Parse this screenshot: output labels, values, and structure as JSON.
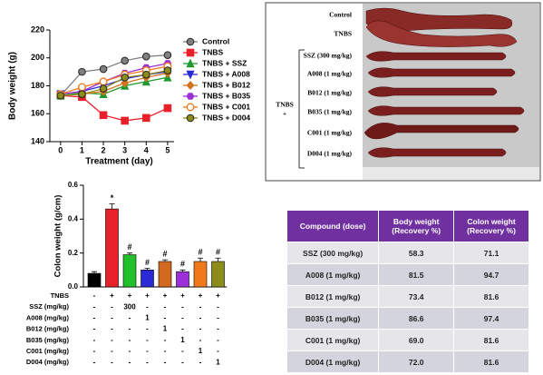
{
  "chart_data": [
    {
      "type": "line",
      "y_label": "Body weight (g)",
      "x_label": "Treatment (day)",
      "x": [
        0,
        1,
        2,
        3,
        4,
        5
      ],
      "xlim": [
        -0.5,
        5.3
      ],
      "xticks": [
        0,
        1,
        2,
        3,
        4,
        5
      ],
      "ylim": [
        140,
        220
      ],
      "yticks": [
        140,
        160,
        180,
        200,
        220
      ],
      "series": [
        {
          "name": "Control",
          "color": "#808080",
          "marker": "circle",
          "values": [
            173,
            190,
            192,
            198,
            201,
            202
          ]
        },
        {
          "name": "TNBS",
          "color": "#e8202a",
          "marker": "square",
          "values": [
            173,
            172,
            159,
            155,
            157,
            164
          ]
        },
        {
          "name": "TNBS + SSZ",
          "color": "#1e9a2e",
          "marker": "triangle",
          "values": [
            173,
            175,
            174,
            180,
            183,
            186
          ]
        },
        {
          "name": "TNBS + A008",
          "color": "#2b2bd6",
          "marker": "triangle-down",
          "values": [
            174,
            176,
            180,
            185,
            188,
            190
          ]
        },
        {
          "name": "TNBS + B012",
          "color": "#d2731e",
          "marker": "diamond",
          "values": [
            173,
            174,
            176,
            182,
            186,
            189
          ]
        },
        {
          "name": "TNBS + B035",
          "color": "#9b30d9",
          "marker": "hexagon",
          "values": [
            174,
            176,
            183,
            189,
            193,
            196
          ]
        },
        {
          "name": "TNBS + C001",
          "color": "#f07a1a",
          "marker": "open-circle",
          "values": [
            174,
            179,
            183,
            188,
            191,
            194
          ]
        },
        {
          "name": "TNBS + D004",
          "color": "#8c8c1a",
          "marker": "circle",
          "values": [
            173,
            174,
            178,
            186,
            188,
            191
          ]
        }
      ]
    },
    {
      "type": "bar",
      "y_label": "Colon weight (g/cm)",
      "values": [
        0.08,
        0.46,
        0.19,
        0.1,
        0.15,
        0.09,
        0.15,
        0.15
      ],
      "errors": [
        0.01,
        0.03,
        0.01,
        0.01,
        0.01,
        0.01,
        0.02,
        0.02
      ],
      "colors": [
        "#000000",
        "#e8202a",
        "#22c02a",
        "#2b2bd6",
        "#d2691e",
        "#9b30d9",
        "#f07a1a",
        "#8c8c1a"
      ],
      "annotations": [
        null,
        "*",
        "#",
        "#",
        "#",
        "#",
        "#",
        "#"
      ],
      "ylim": [
        0,
        0.6
      ],
      "yticks": [
        {
          "value": 0,
          "label": "0.0"
        },
        0.2,
        0.4,
        0.6
      ],
      "treatments": [
        {
          "label": "TNBS",
          "cells": [
            "-",
            "+",
            "+",
            "+",
            "+",
            "+",
            "+",
            "+"
          ]
        },
        {
          "label": "SSZ (mg/kg)",
          "cells": [
            "-",
            "-",
            "300",
            "-",
            "-",
            "-",
            "-",
            "-"
          ]
        },
        {
          "label": "A008 (mg/kg)",
          "cells": [
            "-",
            "-",
            "-",
            "1",
            "-",
            "-",
            "-",
            "-"
          ]
        },
        {
          "label": "B012 (mg/kg)",
          "cells": [
            "-",
            "-",
            "-",
            "-",
            "1",
            "-",
            "-",
            "-"
          ]
        },
        {
          "label": "B035 (mg/kg)",
          "cells": [
            "-",
            "-",
            "-",
            "-",
            "-",
            "1",
            "-",
            "-"
          ]
        },
        {
          "label": "C001 (mg/kg)",
          "cells": [
            "-",
            "-",
            "-",
            "-",
            "-",
            "-",
            "1",
            "-"
          ]
        },
        {
          "label": "D004 (mg/kg)",
          "cells": [
            "-",
            "-",
            "-",
            "-",
            "-",
            "-",
            "-",
            "1"
          ]
        }
      ]
    }
  ],
  "photo": {
    "labels": [
      "Control",
      "TNBS",
      "SSZ (300 mg/kg)",
      "A008 (1 mg/kg)",
      "B012 (1 mg/kg)",
      "B035 (1 mg/kg)",
      "C001 (1 mg/kg)",
      "D004 (1 mg/kg)"
    ],
    "group_label": [
      "TNBS",
      "+"
    ]
  },
  "table": {
    "header": [
      "Compound (dose)",
      "Body weight (Recovery %)",
      "Colon weight (Recovery %)"
    ],
    "rows": [
      [
        "SSZ (300 mg/kg)",
        "58.3",
        "71.1"
      ],
      [
        "A008 (1 mg/kg)",
        "81.5",
        "94.7"
      ],
      [
        "B012 (1 mg/kg)",
        "73.4",
        "81.6"
      ],
      [
        "B035 (1 mg/kg)",
        "86.6",
        "97.4"
      ],
      [
        "C001 (1 mg/kg)",
        "69.0",
        "81.6"
      ],
      [
        "D004 (1 mg/kg)",
        "72.0",
        "81.6"
      ]
    ]
  }
}
